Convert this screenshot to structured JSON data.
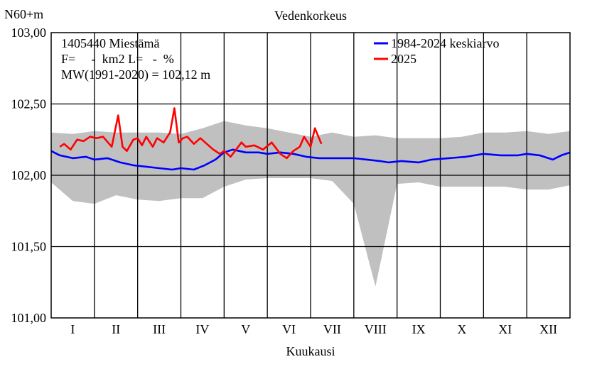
{
  "chart_data": {
    "type": "line",
    "title": "Vedenkorkeus",
    "ylabel": "N60+m",
    "xlabel": "Kuukausi",
    "ylim": [
      101.0,
      103.0
    ],
    "yticks": [
      "101,00",
      "101,50",
      "102,00",
      "102,50",
      "103,00"
    ],
    "xticks": [
      "I",
      "II",
      "III",
      "IV",
      "V",
      "VI",
      "VII",
      "VIII",
      "IX",
      "X",
      "XI",
      "XII"
    ],
    "grid": true,
    "legend_position": "top-right",
    "info_lines": [
      "1405440 Miestämä",
      "F=     -  km2 L=   -  %",
      "MW(1991-2020) = 102,12 m"
    ],
    "colors": {
      "mean": "#0000ff",
      "current": "#ff0000",
      "range": "#c0c0c0",
      "axis": "#000000"
    },
    "series": [
      {
        "name": "1984-2024 keskiarvo",
        "x_month": [
          0.0,
          0.2,
          0.5,
          0.8,
          1.0,
          1.3,
          1.6,
          1.9,
          2.2,
          2.5,
          2.8,
          3.0,
          3.3,
          3.55,
          3.8,
          4.0,
          4.2,
          4.5,
          4.8,
          5.0,
          5.3,
          5.6,
          5.9,
          6.2,
          6.6,
          7.0,
          7.3,
          7.6,
          7.8,
          8.1,
          8.5,
          8.8,
          9.2,
          9.6,
          10.0,
          10.4,
          10.8,
          11.0,
          11.3,
          11.6,
          11.8,
          12.0
        ],
        "values": [
          102.17,
          102.14,
          102.12,
          102.13,
          102.11,
          102.12,
          102.09,
          102.07,
          102.06,
          102.05,
          102.04,
          102.05,
          102.04,
          102.07,
          102.11,
          102.16,
          102.18,
          102.16,
          102.16,
          102.15,
          102.16,
          102.15,
          102.13,
          102.12,
          102.12,
          102.12,
          102.11,
          102.1,
          102.09,
          102.1,
          102.09,
          102.11,
          102.12,
          102.13,
          102.15,
          102.14,
          102.14,
          102.15,
          102.14,
          102.11,
          102.14,
          102.16
        ]
      },
      {
        "name": "2025",
        "x_month": [
          0.2,
          0.3,
          0.45,
          0.6,
          0.75,
          0.9,
          1.05,
          1.2,
          1.4,
          1.55,
          1.65,
          1.75,
          1.9,
          2.0,
          2.1,
          2.2,
          2.35,
          2.45,
          2.6,
          2.75,
          2.85,
          2.95,
          3.05,
          3.15,
          3.3,
          3.45,
          3.6,
          3.75,
          3.9,
          4.0,
          4.15,
          4.4,
          4.5,
          4.7,
          4.9,
          5.1,
          5.3,
          5.45,
          5.6,
          5.75,
          5.85,
          6.0,
          6.1,
          6.25
        ],
        "values": [
          102.2,
          102.22,
          102.18,
          102.25,
          102.24,
          102.27,
          102.26,
          102.27,
          102.2,
          102.42,
          102.2,
          102.17,
          102.25,
          102.26,
          102.21,
          102.27,
          102.2,
          102.26,
          102.23,
          102.3,
          102.47,
          102.23,
          102.26,
          102.27,
          102.22,
          102.26,
          102.22,
          102.18,
          102.15,
          102.17,
          102.13,
          102.23,
          102.2,
          102.21,
          102.18,
          102.23,
          102.15,
          102.12,
          102.17,
          102.2,
          102.27,
          102.2,
          102.33,
          102.22
        ]
      }
    ],
    "range_band": {
      "x_month": [
        0.0,
        0.5,
        1.0,
        1.5,
        2.0,
        2.5,
        3.0,
        3.5,
        4.0,
        4.5,
        5.0,
        5.5,
        6.0,
        6.5,
        7.0,
        7.5,
        8.0,
        8.5,
        9.0,
        9.5,
        10.0,
        10.5,
        11.0,
        11.5,
        12.0
      ],
      "upper": [
        102.3,
        102.29,
        102.31,
        102.3,
        102.3,
        102.3,
        102.29,
        102.33,
        102.38,
        102.35,
        102.33,
        102.3,
        102.27,
        102.3,
        102.27,
        102.28,
        102.26,
        102.26,
        102.26,
        102.27,
        102.3,
        102.3,
        102.31,
        102.29,
        102.31
      ],
      "lower": [
        101.95,
        101.82,
        101.8,
        101.86,
        101.83,
        101.82,
        101.84,
        101.84,
        101.92,
        101.97,
        101.98,
        101.98,
        101.98,
        101.96,
        101.8,
        101.22,
        101.94,
        101.95,
        101.92,
        101.92,
        101.92,
        101.92,
        101.9,
        101.9,
        101.93
      ]
    }
  }
}
